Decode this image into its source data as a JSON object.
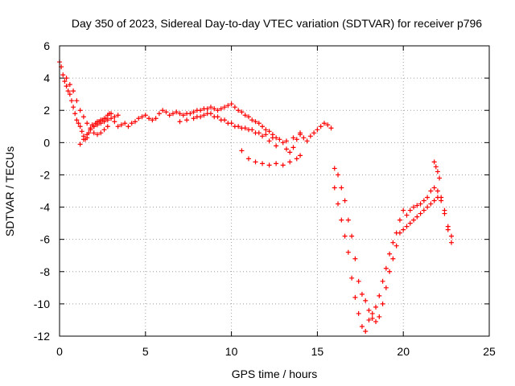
{
  "chart_data": {
    "type": "scatter",
    "title": "Day 350 of 2023, Sidereal Day-to-day VTEC variation (SDTVAR) for receiver p796",
    "xlabel": "GPS time / hours",
    "ylabel": "SDTVAR / TECUs",
    "xlim": [
      0,
      25
    ],
    "ylim": [
      -12,
      6
    ],
    "xticks": [
      "0",
      "5",
      "10",
      "15",
      "20",
      "25"
    ],
    "yticks": [
      "-12",
      "-10",
      "-8",
      "-6",
      "-4",
      "-2",
      "0",
      "2",
      "4",
      "6"
    ],
    "grid": true,
    "marker": "+",
    "color": "#ff0000",
    "series": [
      {
        "name": "p796",
        "x": [
          0.0,
          0.1,
          0.2,
          0.3,
          0.4,
          0.5,
          0.6,
          0.7,
          0.8,
          0.9,
          1.0,
          1.1,
          1.2,
          1.3,
          1.4,
          1.5,
          1.6,
          1.7,
          1.8,
          1.9,
          2.0,
          2.1,
          2.2,
          2.3,
          2.4,
          2.5,
          2.6,
          2.7,
          2.8,
          2.9,
          3.0,
          3.2,
          3.4,
          3.6,
          3.8,
          4.0,
          4.2,
          4.4,
          4.6,
          4.8,
          5.0,
          5.2,
          5.4,
          5.6,
          5.8,
          6.0,
          6.2,
          6.4,
          6.6,
          6.8,
          7.0,
          7.2,
          7.4,
          7.6,
          7.8,
          8.0,
          8.2,
          8.4,
          8.6,
          8.8,
          9.0,
          9.2,
          9.4,
          9.6,
          9.8,
          10.0,
          10.2,
          10.4,
          10.6,
          10.8,
          11.0,
          11.2,
          11.4,
          11.6,
          11.8,
          12.0,
          12.2,
          12.4,
          12.6,
          13.0,
          13.2,
          13.4,
          13.6,
          13.8,
          14.0,
          14.2,
          14.4,
          14.6,
          14.8,
          15.0,
          15.2,
          15.4,
          15.6,
          15.8,
          16.0,
          16.2,
          16.4,
          16.6,
          16.8,
          17.0,
          17.2,
          17.4,
          17.6,
          17.8,
          18.0,
          18.2,
          18.4,
          18.6,
          18.8,
          19.0,
          19.2,
          19.4,
          19.6,
          19.8,
          20.0,
          20.2,
          20.4,
          20.6,
          20.8,
          21.0,
          21.2,
          21.4,
          21.6,
          21.8,
          22.0,
          22.2,
          22.4,
          22.6,
          22.8,
          0.4,
          0.6,
          0.8,
          1.0,
          1.2,
          1.4,
          1.6,
          1.8,
          2.0,
          2.2,
          2.4,
          2.6,
          2.8,
          1.2,
          1.4,
          1.6,
          1.8,
          2.0,
          2.2,
          2.4,
          2.6,
          2.8,
          3.0,
          3.2,
          3.4,
          7.0,
          7.4,
          7.8,
          8.2,
          8.6,
          9.0,
          9.4,
          9.8,
          10.2,
          10.6,
          11.0,
          11.4,
          11.8,
          12.2,
          12.6,
          8.0,
          8.4,
          8.8,
          9.2,
          9.6,
          10.0,
          10.4,
          10.8,
          11.2,
          11.6,
          12.0,
          12.4,
          12.8,
          13.2,
          13.6,
          14.0,
          10.6,
          11.0,
          11.4,
          11.8,
          12.2,
          12.6,
          13.0,
          13.4,
          13.8,
          14.0,
          16.0,
          16.2,
          16.4,
          16.6,
          16.8,
          17.0,
          17.2,
          17.4,
          17.6,
          17.8,
          18.0,
          18.2,
          18.4,
          18.6,
          18.8,
          19.0,
          19.2,
          19.4,
          19.6,
          19.8,
          20.0,
          20.2,
          20.4,
          20.6,
          20.8,
          21.0,
          21.2,
          21.4,
          21.6,
          21.8,
          22.0,
          22.2,
          22.4,
          22.6,
          22.8,
          21.8,
          21.9,
          22.0,
          22.1
        ],
        "y": [
          5.0,
          4.7,
          4.2,
          3.8,
          3.5,
          3.2,
          3.0,
          2.6,
          2.2,
          1.8,
          1.4,
          1.2,
          1.0,
          0.7,
          0.4,
          0.2,
          0.3,
          0.6,
          0.9,
          1.1,
          1.0,
          1.2,
          1.3,
          1.3,
          1.4,
          1.4,
          1.5,
          1.5,
          1.7,
          1.8,
          1.8,
          1.3,
          1.0,
          1.1,
          1.2,
          1.0,
          1.2,
          1.3,
          1.5,
          1.6,
          1.7,
          1.5,
          1.4,
          1.5,
          1.8,
          2.0,
          1.9,
          1.7,
          1.8,
          1.9,
          1.8,
          1.7,
          1.8,
          1.8,
          1.9,
          2.0,
          2.0,
          2.1,
          2.1,
          2.2,
          2.1,
          2.0,
          2.1,
          2.2,
          2.3,
          2.4,
          2.2,
          2.0,
          1.9,
          1.7,
          1.6,
          1.4,
          1.3,
          1.2,
          1.0,
          0.8,
          0.7,
          0.5,
          0.3,
          0.0,
          -0.4,
          -0.6,
          -0.3,
          0.2,
          0.5,
          0.3,
          0.1,
          0.4,
          0.6,
          0.8,
          1.0,
          1.2,
          1.1,
          0.9,
          -2.8,
          -3.8,
          -4.8,
          -5.8,
          -6.8,
          -8.4,
          -9.6,
          -10.6,
          -11.4,
          -11.7,
          -11.0,
          -10.6,
          -10.2,
          -9.5,
          -8.6,
          -7.8,
          -6.9,
          -6.2,
          -5.6,
          -4.8,
          -4.2,
          -4.5,
          -4.2,
          -4.0,
          -3.9,
          -3.8,
          -3.6,
          -3.4,
          -3.0,
          -2.8,
          -3.0,
          -3.4,
          -4.2,
          -5.2,
          -5.8,
          4.0,
          3.6,
          3.2,
          2.6,
          2.0,
          1.6,
          1.2,
          0.8,
          0.6,
          0.5,
          0.6,
          0.8,
          1.0,
          -0.1,
          0.2,
          0.5,
          0.8,
          1.0,
          1.1,
          1.2,
          1.3,
          1.4,
          1.5,
          1.6,
          1.7,
          1.3,
          1.4,
          1.5,
          1.6,
          1.8,
          1.6,
          1.4,
          1.2,
          1.0,
          0.9,
          0.8,
          0.6,
          0.4,
          0.1,
          -0.2,
          1.6,
          1.7,
          1.8,
          1.6,
          1.4,
          1.2,
          1.0,
          0.9,
          0.8,
          0.6,
          0.5,
          0.3,
          0.2,
          0.1,
          0.3,
          0.6,
          -0.5,
          -1.0,
          -1.2,
          -1.3,
          -1.4,
          -1.3,
          -1.4,
          -1.2,
          -1.0,
          -0.8,
          -1.6,
          -2.0,
          -2.8,
          -3.6,
          -4.8,
          -5.8,
          -7.2,
          -8.6,
          -9.4,
          -9.8,
          -10.4,
          -10.9,
          -11.1,
          -10.8,
          -10.0,
          -9.0,
          -8.0,
          -7.2,
          -6.4,
          -5.6,
          -5.4,
          -5.2,
          -5.0,
          -4.8,
          -4.6,
          -4.4,
          -4.2,
          -4.0,
          -3.8,
          -3.6,
          -3.4,
          -3.6,
          -4.4,
          -5.4,
          -6.2,
          -1.2,
          -1.5,
          -1.8,
          -2.2
        ]
      }
    ]
  }
}
